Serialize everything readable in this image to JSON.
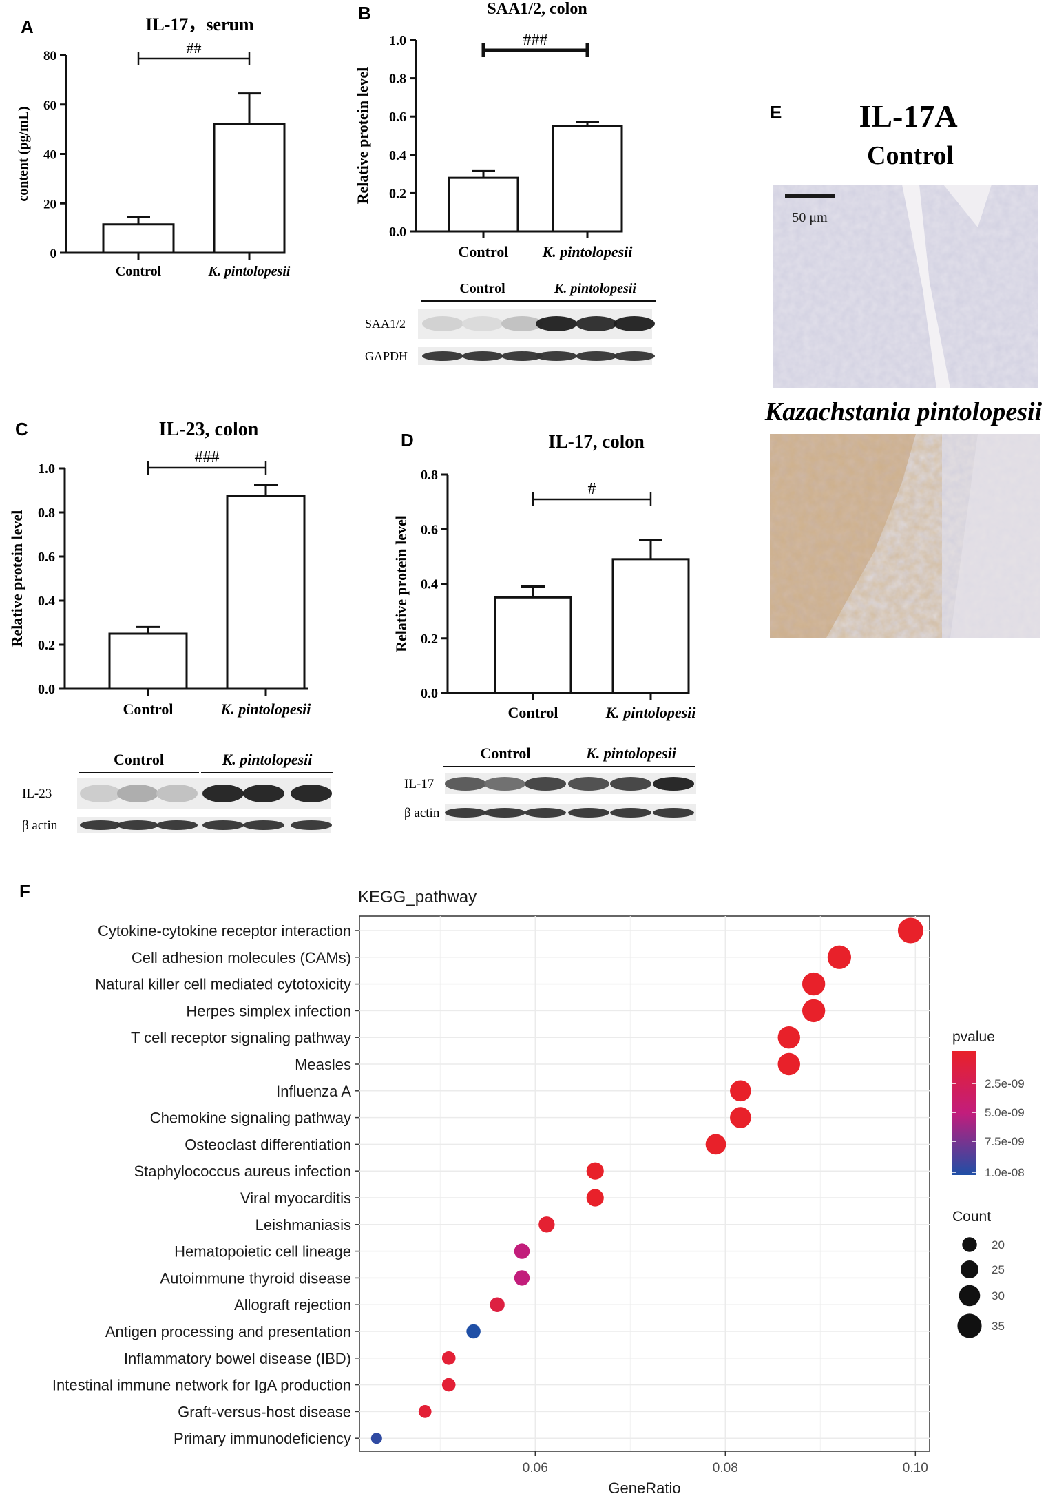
{
  "chart_data": [
    {
      "panel": "A",
      "type": "bar",
      "title": "IL-17，serum",
      "ylabel": "content (pg/mL)",
      "categories": [
        "Control",
        "K. pintolopesii"
      ],
      "values": [
        11.5,
        52
      ],
      "errors": [
        3,
        12.5
      ],
      "ylim": [
        0,
        80
      ],
      "yticks": [
        0,
        20,
        40,
        60,
        80
      ],
      "significance": "##"
    },
    {
      "panel": "B",
      "type": "bar",
      "title": "SAA1/2, colon",
      "ylabel": "Relative protein level",
      "categories": [
        "Control",
        "K. pintolopesii"
      ],
      "values": [
        0.28,
        0.55
      ],
      "errors": [
        0.035,
        0.02
      ],
      "ylim": [
        0,
        1.0
      ],
      "yticks": [
        0.0,
        0.2,
        0.4,
        0.6,
        0.8,
        1.0
      ],
      "significance": "###",
      "blot": {
        "groups": [
          "Control",
          "K. pintolopesii"
        ],
        "rows": [
          {
            "label": "SAA1/2",
            "intensities": [
              0.12,
              0.08,
              0.2,
              0.95,
              0.9,
              0.95
            ]
          },
          {
            "label": "GAPDH",
            "intensities": [
              0.85,
              0.85,
              0.85,
              0.85,
              0.85,
              0.85
            ]
          }
        ]
      }
    },
    {
      "panel": "C",
      "type": "bar",
      "title": "IL-23, colon",
      "ylabel": "Relative protein level",
      "categories": [
        "Control",
        "K. pintolopesii"
      ],
      "values": [
        0.25,
        0.875
      ],
      "errors": [
        0.03,
        0.05
      ],
      "ylim": [
        0,
        1.0
      ],
      "yticks": [
        0.0,
        0.2,
        0.4,
        0.6,
        0.8,
        1.0
      ],
      "significance": "###",
      "blot": {
        "groups": [
          "Control",
          "K. pintolopesii"
        ],
        "rows": [
          {
            "label": "IL-23",
            "intensities": [
              0.15,
              0.3,
              0.2,
              0.95,
              0.95,
              0.95
            ]
          },
          {
            "label": "β actin",
            "intensities": [
              0.85,
              0.85,
              0.85,
              0.85,
              0.85,
              0.85
            ]
          }
        ]
      }
    },
    {
      "panel": "D",
      "type": "bar",
      "title": "IL-17, colon",
      "ylabel": "Relative protein level",
      "categories": [
        "Control",
        "K. pintolopesii"
      ],
      "values": [
        0.35,
        0.49
      ],
      "errors": [
        0.04,
        0.07
      ],
      "ylim": [
        0,
        0.8
      ],
      "yticks": [
        0.0,
        0.2,
        0.4,
        0.6,
        0.8
      ],
      "significance": "#",
      "blot": {
        "groups": [
          "Control",
          "K. pintolopesii"
        ],
        "rows": [
          {
            "label": "IL-17",
            "intensities": [
              0.7,
              0.6,
              0.8,
              0.75,
              0.8,
              0.95
            ]
          },
          {
            "label": "β actin",
            "intensities": [
              0.85,
              0.85,
              0.85,
              0.85,
              0.85,
              0.85
            ]
          }
        ]
      }
    },
    {
      "panel": "F",
      "type": "scatter",
      "title": "KEGG_pathway",
      "xlabel": "GeneRatio",
      "ylabel": "",
      "xlim": [
        0.0415,
        0.1015
      ],
      "xticks": [
        0.06,
        0.08,
        0.1
      ],
      "xtick_labels": [
        "0.06",
        "0.08",
        "0.10"
      ],
      "grid": true,
      "legend_position": "right",
      "color_legend": {
        "title": "pvalue",
        "ticks": [
          "2.5e-09",
          "5.0e-09",
          "7.5e-09",
          "1.0e-08"
        ],
        "low_color": "#e8212a",
        "mid_color": "#c21d7c",
        "high_color": "#1f4fa6"
      },
      "size_legend": {
        "title": "Count",
        "values": [
          20,
          25,
          30,
          35
        ]
      },
      "points": [
        {
          "pathway": "Cytokine-cytokine receptor interaction",
          "gene_ratio": 0.0995,
          "count": 37,
          "pvalue": 1e-10
        },
        {
          "pathway": "Cell adhesion molecules (CAMs)",
          "gene_ratio": 0.092,
          "count": 34,
          "pvalue": 1e-10
        },
        {
          "pathway": "Natural killer cell mediated cytotoxicity",
          "gene_ratio": 0.0893,
          "count": 33,
          "pvalue": 1e-10
        },
        {
          "pathway": "Herpes simplex infection",
          "gene_ratio": 0.0893,
          "count": 33,
          "pvalue": 1e-10
        },
        {
          "pathway": "T cell receptor signaling pathway",
          "gene_ratio": 0.0867,
          "count": 32,
          "pvalue": 1e-10
        },
        {
          "pathway": "Measles",
          "gene_ratio": 0.0867,
          "count": 32,
          "pvalue": 1e-10
        },
        {
          "pathway": "Influenza A",
          "gene_ratio": 0.0816,
          "count": 30,
          "pvalue": 1e-10
        },
        {
          "pathway": "Chemokine signaling pathway",
          "gene_ratio": 0.0816,
          "count": 30,
          "pvalue": 1e-10
        },
        {
          "pathway": "Osteoclast differentiation",
          "gene_ratio": 0.079,
          "count": 29,
          "pvalue": 1e-10
        },
        {
          "pathway": "Staphylococcus aureus infection",
          "gene_ratio": 0.0663,
          "count": 24,
          "pvalue": 1e-10
        },
        {
          "pathway": "Viral myocarditis",
          "gene_ratio": 0.0663,
          "count": 24,
          "pvalue": 1e-10
        },
        {
          "pathway": "Leishmaniasis",
          "gene_ratio": 0.0612,
          "count": 22,
          "pvalue": 6e-10
        },
        {
          "pathway": "Hematopoietic cell lineage",
          "gene_ratio": 0.0586,
          "count": 21,
          "pvalue": 5e-09
        },
        {
          "pathway": "Autoimmune thyroid disease",
          "gene_ratio": 0.0586,
          "count": 21,
          "pvalue": 5e-09
        },
        {
          "pathway": "Allograft rejection",
          "gene_ratio": 0.056,
          "count": 20,
          "pvalue": 1.5e-09
        },
        {
          "pathway": "Antigen processing and presentation",
          "gene_ratio": 0.0535,
          "count": 19,
          "pvalue": 1e-08
        },
        {
          "pathway": "Inflammatory bowel disease (IBD)",
          "gene_ratio": 0.0509,
          "count": 18,
          "pvalue": 8e-10
        },
        {
          "pathway": "Intestinal immune network for IgA production",
          "gene_ratio": 0.0509,
          "count": 18,
          "pvalue": 8e-10
        },
        {
          "pathway": "Graft-versus-host disease",
          "gene_ratio": 0.0484,
          "count": 17,
          "pvalue": 8e-10
        },
        {
          "pathway": "Primary immunodeficiency",
          "gene_ratio": 0.0433,
          "count": 14,
          "pvalue": 9.5e-09
        }
      ]
    }
  ],
  "panel_letters": [
    "A",
    "B",
    "C",
    "D",
    "E",
    "F"
  ],
  "panel_e": {
    "title": "IL-17A",
    "top_label": "Control",
    "bottom_label": "Kazachstania pintolopesii",
    "scale_bar": "50 μm"
  },
  "colors": {
    "bar_fill": "#ffffff",
    "ink": "#111111",
    "grid": "#ebebeb",
    "tissue_bg": "#e6e4ea",
    "stain": "#b5793a"
  }
}
